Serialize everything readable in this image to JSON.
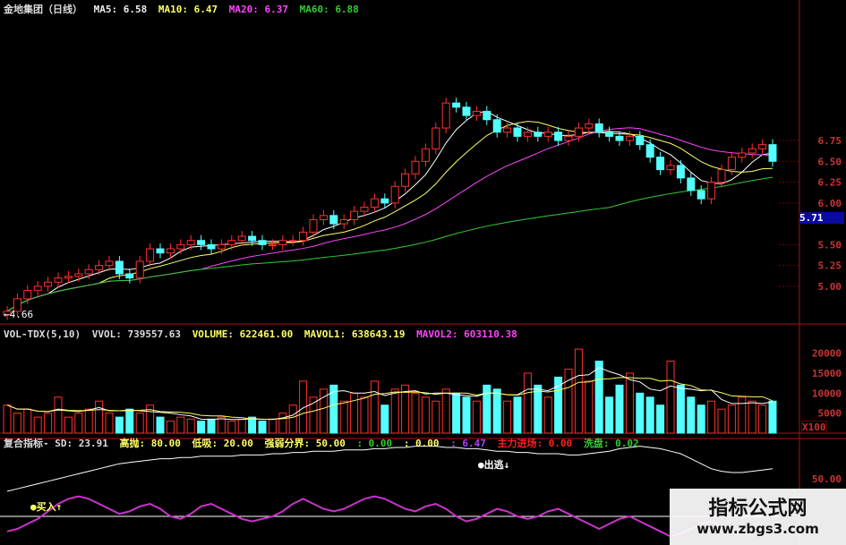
{
  "header": {
    "title": "金地集团（日线）",
    "ma5": "MA5: 6.58",
    "ma10": "MA10: 6.47",
    "ma20": "MA20: 6.37",
    "ma60": "MA60: 6.88"
  },
  "volume_header": {
    "name": "VOL-TDX(5,10)",
    "vvol": "VVOL: 739557.63",
    "volume": "VOLUME: 622461.00",
    "mavol1": "MAVOL1: 638643.19",
    "mavol2": "MAVOL2: 603110.38"
  },
  "indicator_header": {
    "sd": "复合指标- SD: 23.91",
    "high": "高抛: 80.00",
    "low": "低吸: 20.00",
    "mid": "强弱分界: 50.00",
    "v1": ": 0.00",
    "v2": ": 0.00",
    "v3": ": 6.47",
    "main": "主力进场: 0.00",
    "wash": "洗盘: 0.02"
  },
  "annotations": {
    "low_price": "←4.66",
    "sell": "●出逃↓",
    "buy": "●买入↑",
    "current_price": "5.71",
    "vol_unit": "X100"
  },
  "watermark": {
    "title": "指标公式网",
    "url": "www.zbgs3.com"
  },
  "colors": {
    "up": "#ff3030",
    "down": "#54ffff",
    "ma5": "#ffffff",
    "ma10": "#ffff66",
    "ma20": "#ff44ff",
    "ma60": "#33cc33",
    "axis": "#b01010"
  },
  "chart_data": [
    {
      "type": "candlestick",
      "price_ticks": [
        "6.75",
        "6.50",
        "6.25",
        "6.00",
        "5.50",
        "5.25",
        "5.00"
      ],
      "ylim": [
        4.6,
        7.4
      ],
      "open": [
        4.66,
        4.7,
        4.85,
        4.95,
        5.0,
        5.05,
        5.1,
        5.12,
        5.15,
        5.2,
        5.25,
        5.3,
        5.15,
        5.1,
        5.3,
        5.45,
        5.4,
        5.45,
        5.5,
        5.55,
        5.5,
        5.45,
        5.5,
        5.55,
        5.6,
        5.55,
        5.5,
        5.5,
        5.55,
        5.55,
        5.65,
        5.8,
        5.85,
        5.75,
        5.8,
        5.9,
        5.95,
        6.05,
        6.0,
        6.2,
        6.35,
        6.5,
        6.65,
        6.9,
        7.2,
        7.15,
        7.05,
        7.1,
        7.0,
        6.85,
        6.9,
        6.8,
        6.85,
        6.8,
        6.85,
        6.75,
        6.8,
        6.9,
        6.95,
        6.85,
        6.8,
        6.75,
        6.8,
        6.7,
        6.55,
        6.4,
        6.45,
        6.3,
        6.15,
        6.05,
        6.25,
        6.4,
        6.55,
        6.6,
        6.65,
        6.7
      ],
      "close": [
        4.7,
        4.85,
        4.95,
        5.0,
        5.05,
        5.1,
        5.12,
        5.15,
        5.2,
        5.25,
        5.3,
        5.15,
        5.1,
        5.3,
        5.45,
        5.4,
        5.45,
        5.5,
        5.55,
        5.5,
        5.45,
        5.5,
        5.55,
        5.6,
        5.55,
        5.5,
        5.5,
        5.55,
        5.55,
        5.65,
        5.8,
        5.85,
        5.75,
        5.8,
        5.9,
        5.95,
        6.05,
        6.0,
        6.2,
        6.35,
        6.5,
        6.65,
        6.9,
        7.2,
        7.15,
        7.05,
        7.1,
        7.0,
        6.85,
        6.9,
        6.8,
        6.85,
        6.8,
        6.85,
        6.75,
        6.8,
        6.9,
        6.95,
        6.85,
        6.8,
        6.75,
        6.8,
        6.7,
        6.55,
        6.4,
        6.45,
        6.3,
        6.15,
        6.05,
        6.25,
        6.4,
        6.55,
        6.6,
        6.65,
        6.7,
        6.5
      ]
    },
    {
      "type": "bar",
      "name": "VOLUME",
      "unit": "X100",
      "y_ticks": [
        "20000",
        "15000",
        "10000",
        "5000"
      ],
      "ylim": [
        0,
        22000
      ],
      "values": [
        7000,
        5000,
        6000,
        4000,
        5000,
        9000,
        4000,
        5000,
        6000,
        8000,
        5000,
        4000,
        6000,
        5000,
        7000,
        4000,
        3000,
        4000,
        3500,
        3000,
        3500,
        4000,
        3000,
        3500,
        4000,
        3000,
        3500,
        5000,
        7000,
        13000,
        9000,
        11000,
        12000,
        8000,
        10000,
        9000,
        13000,
        7000,
        11000,
        12000,
        10000,
        9000,
        8000,
        11000,
        10000,
        9000,
        8000,
        12000,
        11000,
        8000,
        9000,
        15000,
        12000,
        9000,
        14000,
        16000,
        21000,
        13000,
        18000,
        9000,
        12000,
        15000,
        10000,
        9000,
        7000,
        18000,
        12000,
        9000,
        7000,
        8000,
        6000,
        7000,
        9000,
        8000,
        7000,
        8000
      ]
    },
    {
      "type": "line",
      "name": "复合指标",
      "y_ticks": [
        "50.00"
      ],
      "ylim": [
        0,
        100
      ],
      "series": [
        {
          "values": [
            40,
            42,
            44,
            46,
            48,
            50,
            52,
            54,
            56,
            58,
            60,
            62,
            63,
            64,
            65,
            66,
            66,
            67,
            67,
            68,
            68,
            68,
            68,
            69,
            69,
            69,
            70,
            70,
            71,
            71,
            72,
            72,
            72,
            73,
            73,
            73,
            74,
            74,
            75,
            75,
            76,
            76,
            76,
            75,
            75,
            74,
            74,
            73,
            72,
            72,
            71,
            71,
            70,
            70,
            70,
            69,
            69,
            70,
            71,
            72,
            74,
            75,
            76,
            75,
            74,
            72,
            70,
            66,
            62,
            58,
            56,
            55,
            55,
            56,
            57,
            58
          ]
        },
        {
          "values": [
            8,
            10,
            14,
            18,
            24,
            30,
            34,
            36,
            34,
            30,
            26,
            22,
            24,
            28,
            30,
            26,
            20,
            18,
            22,
            28,
            30,
            26,
            22,
            18,
            16,
            18,
            20,
            24,
            30,
            34,
            30,
            26,
            24,
            26,
            30,
            34,
            36,
            34,
            30,
            26,
            24,
            28,
            30,
            26,
            20,
            16,
            18,
            22,
            26,
            24,
            20,
            18,
            20,
            24,
            26,
            22,
            18,
            14,
            10,
            14,
            18,
            20,
            16,
            12,
            8,
            4,
            6,
            10,
            14,
            16,
            12,
            8,
            6,
            8,
            10,
            12
          ]
        }
      ]
    }
  ]
}
